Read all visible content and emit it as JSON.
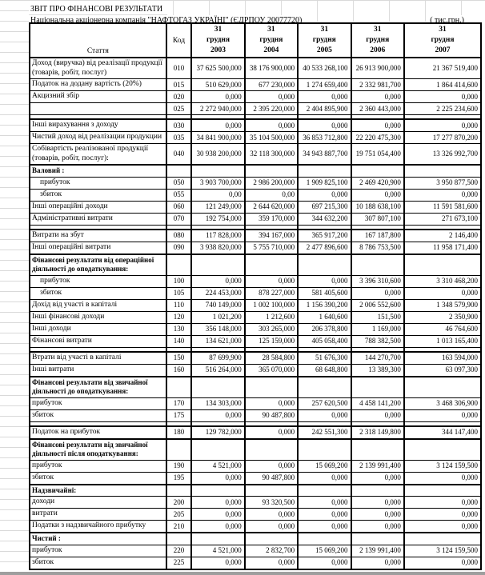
{
  "doc": {
    "title": "ЗВІТ ПРО ФІНАНСОВІ РЕЗУЛЬТАТИ",
    "company": "Національна акціонерна компанія \"НАФТОГАЗ УКРАЇНІ\"  (ЄДРПОУ 20077720)",
    "units": "( тис.грн.)"
  },
  "table": {
    "article_header": "Стаття",
    "code_header": "Код",
    "periods": [
      {
        "day": "31",
        "month": "грудня",
        "year": "2003"
      },
      {
        "day": "31",
        "month": "грудня",
        "year": "2004"
      },
      {
        "day": "31",
        "month": "грудня",
        "year": "2005"
      },
      {
        "day": "31",
        "month": "грудня",
        "year": "2006"
      },
      {
        "day": "31",
        "month": "грудня",
        "year": "2007"
      }
    ],
    "rows": [
      {
        "type": "data",
        "label": "Доход (виручка) від реалізації продукції (товарів, робіт, послуг)",
        "code": "010",
        "values": [
          "37 625 500,000",
          "38 176 900,000",
          "40 533 268,100",
          "26 913 900,000",
          "21 367 519,400"
        ]
      },
      {
        "type": "data",
        "label": "Податок на додану вартість (20%)",
        "code": "015",
        "values": [
          "510 629,000",
          "677 230,000",
          "1 274 659,400",
          "2 332 981,700",
          "1 864 414,600"
        ]
      },
      {
        "type": "data",
        "label": "Акцизний збір",
        "code": "020",
        "values": [
          "0,000",
          "0,000",
          "0,000",
          "0,000",
          "0,000"
        ]
      },
      {
        "type": "data",
        "label": "",
        "code": "025",
        "values": [
          "2 272 940,000",
          "2 395 220,000",
          "2 404 895,900",
          "2 360 443,000",
          "2 225 234,600"
        ]
      },
      {
        "type": "spacer"
      },
      {
        "type": "data",
        "label": "Інші вирахування з доходу",
        "code": "030",
        "values": [
          "0,000",
          "0,000",
          "0,000",
          "0,000",
          "0,000"
        ]
      },
      {
        "type": "data",
        "label": "Чистий доход  від реалізации продукции",
        "code": "035",
        "values": [
          "34 841 900,000",
          "35 104 500,000",
          "36 853 712,800",
          "22 220 475,300",
          "17 277 870,200"
        ]
      },
      {
        "type": "data",
        "label": "Собівартість реалізованої продукції (товарів, робіт, послуг):",
        "code": "040",
        "values": [
          "30 938 200,000",
          "32 118 300,000",
          "34 943 887,700",
          "19 751 054,400",
          "13 326 992,700"
        ]
      },
      {
        "type": "section",
        "label": "Валовий :"
      },
      {
        "type": "data",
        "indent": true,
        "label": "прибуток",
        "code": "050",
        "values": [
          "3 903 700,000",
          "2 986 200,000",
          "1 909 825,100",
          "2 469 420,900",
          "3 950 877,500"
        ]
      },
      {
        "type": "data",
        "indent": true,
        "label": "збиток",
        "code": "055",
        "values": [
          "0,00",
          "0,00",
          "0,000",
          "0,000",
          "0,000"
        ]
      },
      {
        "type": "data",
        "label": "Інші операційні доходи",
        "code": "060",
        "values": [
          "121 249,000",
          "2 644 620,000",
          "697 215,300",
          "10 188 638,100",
          "11 591 581,600"
        ]
      },
      {
        "type": "data",
        "label": "Адміністративні витрати",
        "code": "070",
        "values": [
          "192 754,000",
          "359 170,000",
          "344 632,200",
          "307 807,100",
          "271 673,100"
        ]
      },
      {
        "type": "spacer"
      },
      {
        "type": "data",
        "label": "Витрати на збут",
        "code": "080",
        "values": [
          "117 828,000",
          "394 167,000",
          "365 917,200",
          "167 187,800",
          "2 146,400"
        ]
      },
      {
        "type": "data",
        "label": "Інші операційні витрати",
        "code": "090",
        "values": [
          "3 938 820,000",
          "5 755 710,000",
          "2 477 896,600",
          "8 786 753,500",
          "11 958 171,400"
        ]
      },
      {
        "type": "section",
        "label": "Фінансові результати від операційної діяльності до оподаткування:"
      },
      {
        "type": "data",
        "indent": true,
        "label": "прибуток",
        "code": "100",
        "values": [
          "0,000",
          "0,000",
          "0,000",
          "3 396 310,600",
          "3 310 468,200"
        ]
      },
      {
        "type": "data",
        "indent": true,
        "label": "збиток",
        "code": "105",
        "values": [
          "224 453,000",
          "878 227,000",
          "581 405,600",
          "0,000",
          "0,000"
        ]
      },
      {
        "type": "data",
        "label": "Дохід від участі в капіталі",
        "code": "110",
        "values": [
          "740 149,000",
          "1 002 100,000",
          "1 156 390,200",
          "2 006 552,600",
          "1 348 579,900"
        ]
      },
      {
        "type": "data",
        "label": "Інші фінансові доходи",
        "code": "120",
        "values": [
          "1 021,200",
          "1 212,600",
          "1 640,600",
          "151,500",
          "2 350,900"
        ]
      },
      {
        "type": "data",
        "label": "Інші доходи",
        "code": "130",
        "values": [
          "356 148,000",
          "303 265,000",
          "206 378,800",
          "1 169,000",
          "46 764,600"
        ]
      },
      {
        "type": "data",
        "label": "Фінансові витрати",
        "code": "140",
        "values": [
          "134 621,000",
          "125 159,000",
          "405 058,400",
          "788 382,500",
          "1 013 165,400"
        ]
      },
      {
        "type": "spacer"
      },
      {
        "type": "data",
        "label": "Втрати від участі в капіталі",
        "code": "150",
        "values": [
          "87 699,900",
          "28 584,800",
          "51 676,300",
          "144 270,700",
          "163 594,000"
        ]
      },
      {
        "type": "data",
        "label": "Інші витрати",
        "code": "160",
        "values": [
          "516 264,000",
          "365 070,000",
          "68 648,800",
          "13 389,300",
          "63 097,300"
        ]
      },
      {
        "type": "section",
        "label": "Фінансові результати від звичайної діяльності до оподаткування:"
      },
      {
        "type": "data",
        "label": "прибуток",
        "code": "170",
        "values": [
          "134 303,000",
          "0,000",
          "257 620,500",
          "4 458 141,200",
          "3 468 306,900"
        ]
      },
      {
        "type": "data",
        "label": "збиток",
        "code": "175",
        "values": [
          "0,000",
          "90 487,800",
          "0,000",
          "0,000",
          "0,000"
        ]
      },
      {
        "type": "spacer"
      },
      {
        "type": "data",
        "label": "Податок на прибуток",
        "code": "180",
        "values": [
          "129 782,000",
          "0,000",
          "242 551,300",
          "2 318 149,800",
          "344 147,400"
        ]
      },
      {
        "type": "section",
        "label": "Фінансові результати від звичайної діяльності після оподаткування:"
      },
      {
        "type": "data",
        "label": "прибуток",
        "code": "190",
        "values": [
          "4 521,000",
          "0,000",
          "15 069,200",
          "2 139 991,400",
          "3 124 159,500"
        ]
      },
      {
        "type": "data",
        "label": "збиток",
        "code": "195",
        "values": [
          "0,000",
          "90 487,800",
          "0,000",
          "0,000",
          "0,000"
        ]
      },
      {
        "type": "section",
        "label": "Надзвичайні:"
      },
      {
        "type": "data",
        "label": "доходи",
        "code": "200",
        "values": [
          "0,000",
          "93 320,500",
          "0,000",
          "0,000",
          "0,000"
        ]
      },
      {
        "type": "data",
        "label": "витрати",
        "code": "205",
        "values": [
          "0,000",
          "0,000",
          "0,000",
          "0,000",
          "0,000"
        ]
      },
      {
        "type": "data",
        "label": "Податки з надзвичайного прибутку",
        "code": "210",
        "values": [
          "0,000",
          "0,000",
          "0,000",
          "0,000",
          "0,000"
        ]
      },
      {
        "type": "section",
        "label": "Чистий :"
      },
      {
        "type": "data",
        "label": "прибуток",
        "code": "220",
        "values": [
          "4 521,000",
          "2 832,700",
          "15 069,200",
          "2 139 991,400",
          "3 124 159,500"
        ]
      },
      {
        "type": "data",
        "label": "збиток",
        "code": "225",
        "values": [
          "0,000",
          "0,000",
          "0,000",
          "0,000",
          "0,000"
        ]
      }
    ]
  }
}
